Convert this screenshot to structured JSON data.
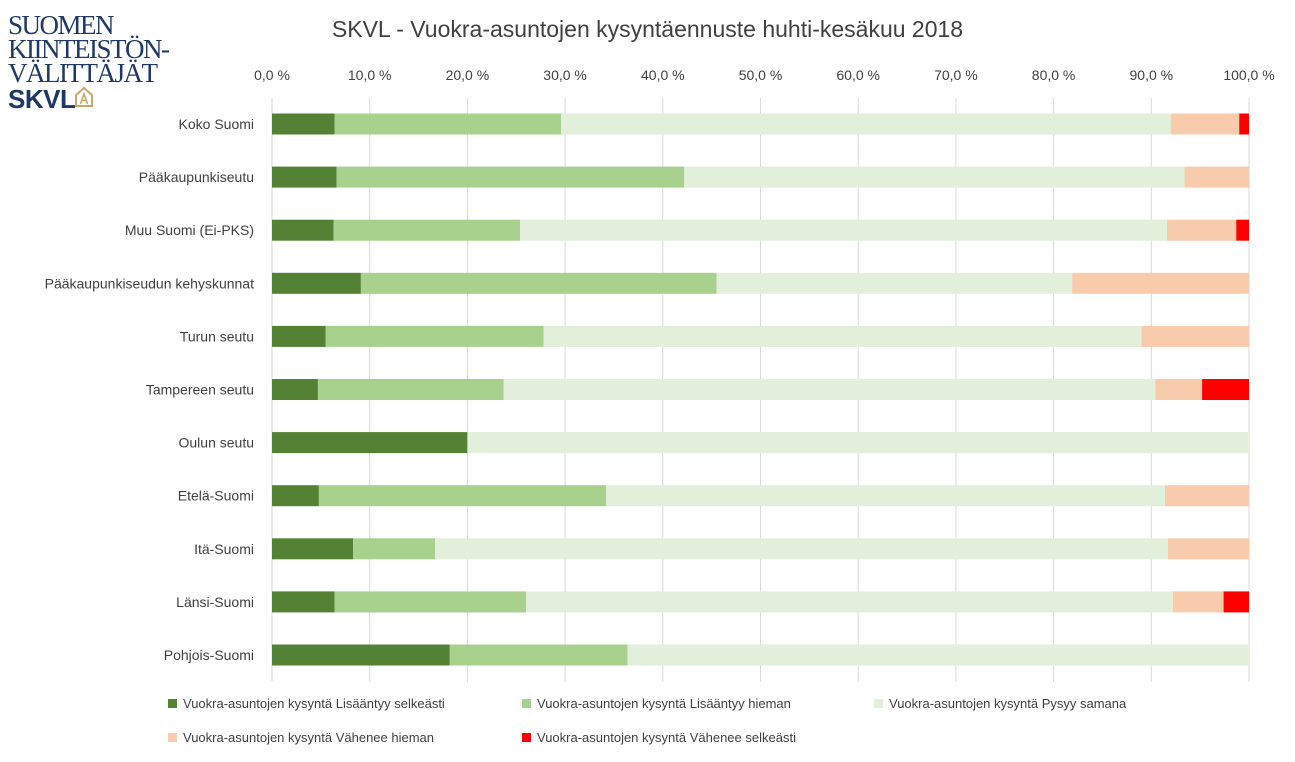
{
  "logo": {
    "lines": [
      "SUOMEN",
      "KIINTEISTÖN-",
      "VÄLITTÄJÄT"
    ],
    "brand": "SKVL"
  },
  "colors": {
    "series": [
      "#548235",
      "#a9d18e",
      "#e2efda",
      "#f8cbad",
      "#ff0000"
    ],
    "gridline": "#d9d9d9",
    "text": "#404040",
    "logo": "#1f3864",
    "logo_accent": "#c9a86a"
  },
  "chart_data": {
    "type": "bar",
    "orientation": "horizontal",
    "stacked": true,
    "title": "SKVL - Vuokra-asuntojen kysyntäennuste huhti-kesäkuu 2018",
    "xlim": [
      0,
      100
    ],
    "xticks": [
      "0,0 %",
      "10,0 %",
      "20,0 %",
      "30,0 %",
      "40,0 %",
      "50,0 %",
      "60,0 %",
      "70,0 %",
      "80,0 %",
      "90,0 %",
      "100,0 %"
    ],
    "x_axis_position": "top",
    "grid": true,
    "legend_position": "bottom",
    "categories": [
      "Koko Suomi",
      "Pääkaupunkiseutu",
      "Muu Suomi (Ei-PKS)",
      "Pääkaupunkiseudun kehyskunnat",
      "Turun seutu",
      "Tampereen seutu",
      "Oulun seutu",
      "Etelä-Suomi",
      "Itä-Suomi",
      "Länsi-Suomi",
      "Pohjois-Suomi"
    ],
    "series": [
      {
        "name": "Vuokra-asuntojen kysyntä  Lisääntyy selkeästi",
        "values": [
          6.4,
          6.6,
          6.3,
          9.1,
          5.5,
          4.7,
          20.0,
          4.8,
          8.3,
          6.4,
          18.2
        ]
      },
      {
        "name": "Vuokra-asuntojen kysyntä  Lisääntyy hieman",
        "values": [
          23.2,
          35.6,
          19.1,
          36.4,
          22.3,
          19.0,
          0.0,
          29.4,
          8.4,
          19.6,
          18.2
        ]
      },
      {
        "name": "Vuokra-asuntojen kysyntä  Pysyy samana",
        "values": [
          62.4,
          51.2,
          66.2,
          36.4,
          61.2,
          66.7,
          80.0,
          57.2,
          75.0,
          66.2,
          63.6
        ]
      },
      {
        "name": "Vuokra-asuntojen kysyntä  Vähenee hieman",
        "values": [
          7.0,
          6.6,
          7.1,
          18.1,
          11.0,
          4.8,
          0.0,
          8.6,
          8.3,
          5.2,
          0.0
        ]
      },
      {
        "name": "Vuokra-asuntojen kysyntä  Vähenee selkeästi",
        "values": [
          1.0,
          0.0,
          1.3,
          0.0,
          0.0,
          4.8,
          0.0,
          0.0,
          0.0,
          2.6,
          0.0
        ]
      }
    ]
  }
}
